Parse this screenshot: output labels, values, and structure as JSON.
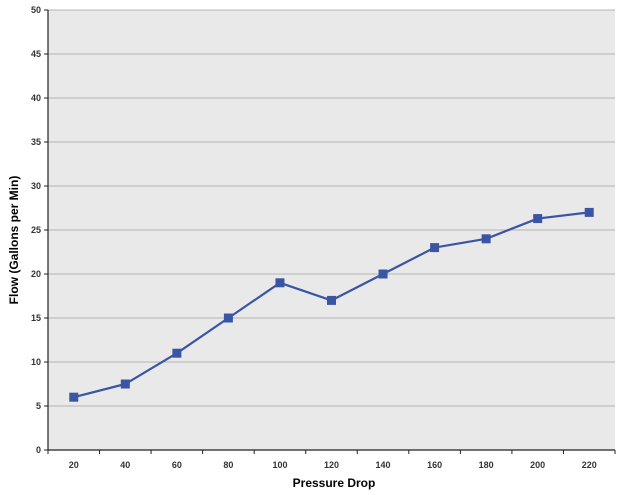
{
  "chart_data": {
    "type": "line",
    "title": "",
    "xlabel": "Pressure Drop",
    "ylabel": "Flow (Gallons per Min)",
    "x": [
      20,
      40,
      60,
      80,
      100,
      120,
      140,
      160,
      180,
      200,
      220
    ],
    "x_tick_labels": [
      "20",
      "40",
      "60",
      "80",
      "100",
      "120",
      "140",
      "160",
      "180",
      "200",
      "220"
    ],
    "y_tick_labels": [
      "0",
      "5",
      "10",
      "15",
      "20",
      "25",
      "30",
      "35",
      "40",
      "45",
      "50"
    ],
    "ylim": [
      0,
      50
    ],
    "series": [
      {
        "values": [
          6,
          7.5,
          11,
          15,
          19,
          17,
          20,
          23,
          24,
          26.3,
          27
        ]
      }
    ],
    "grid": true,
    "legend": "none",
    "colors": {
      "line": "#3a55a4",
      "marker": "#3a55a4",
      "plot_background": "#e9e9e9",
      "gridline": "#b4b4b4",
      "axis": "#222222"
    }
  }
}
